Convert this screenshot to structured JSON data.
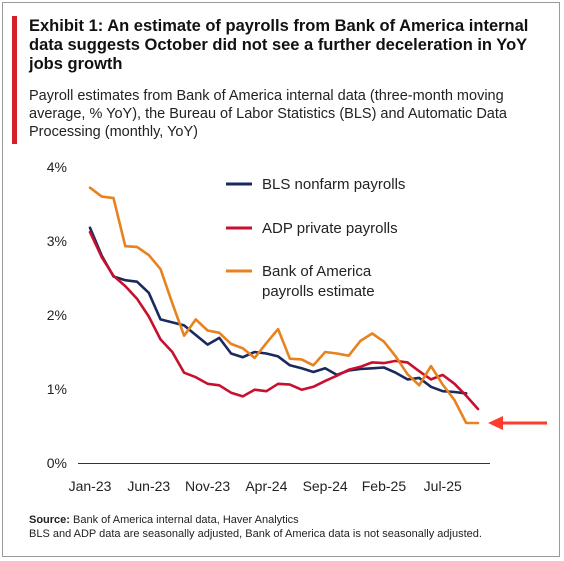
{
  "title": "Exhibit 1: An estimate of payrolls from Bank of America internal data suggests October did not see a further deceleration in YoY jobs growth",
  "subtitle": "Payroll estimates from Bank of America internal data (three-month moving average, % YoY), the Bureau of Labor Statistics (BLS) and Automatic Data Processing (monthly, YoY)",
  "source_label": "Source:",
  "source_text": "Bank of America internal data, Haver Analytics",
  "note": "BLS and ADP data are seasonally adjusted, Bank of America data is not seasonally adjusted.",
  "chart_data": {
    "type": "line",
    "x_start": "2023-01",
    "x_end": "2025-10",
    "x_ticks": [
      "Jan-23",
      "Jun-23",
      "Nov-23",
      "Apr-24",
      "Sep-24",
      "Feb-25",
      "Jul-25"
    ],
    "y_ticks": [
      "0%",
      "1%",
      "2%",
      "3%",
      "4%"
    ],
    "ylim": [
      0,
      4
    ],
    "grid": false,
    "legend_position": "top-right",
    "annotation": "red arrow pointing at the latest Bank of America estimate",
    "series": [
      {
        "name": "BLS nonfarm payrolls",
        "color": "#1a2a5e",
        "dates": [
          "2023-01",
          "2023-02",
          "2023-03",
          "2023-04",
          "2023-05",
          "2023-06",
          "2023-07",
          "2023-08",
          "2023-09",
          "2023-10",
          "2023-11",
          "2023-12",
          "2024-01",
          "2024-02",
          "2024-03",
          "2024-04",
          "2024-05",
          "2024-06",
          "2024-07",
          "2024-08",
          "2024-09",
          "2024-10",
          "2024-11",
          "2024-12",
          "2025-01",
          "2025-02",
          "2025-03",
          "2025-04",
          "2025-05",
          "2025-06",
          "2025-07",
          "2025-08",
          "2025-09"
        ],
        "values": [
          3.18,
          2.8,
          2.52,
          2.47,
          2.45,
          2.3,
          1.94,
          1.9,
          1.86,
          1.73,
          1.6,
          1.69,
          1.48,
          1.43,
          1.5,
          1.48,
          1.44,
          1.32,
          1.28,
          1.23,
          1.28,
          1.19,
          1.25,
          1.27,
          1.28,
          1.29,
          1.22,
          1.13,
          1.15,
          1.03,
          0.97,
          0.96,
          0.94
        ]
      },
      {
        "name": "ADP private payrolls",
        "color": "#c8102e",
        "dates": [
          "2023-01",
          "2023-02",
          "2023-03",
          "2023-04",
          "2023-05",
          "2023-06",
          "2023-07",
          "2023-08",
          "2023-09",
          "2023-10",
          "2023-11",
          "2023-12",
          "2024-01",
          "2024-02",
          "2024-03",
          "2024-04",
          "2024-05",
          "2024-06",
          "2024-07",
          "2024-08",
          "2024-09",
          "2024-10",
          "2024-11",
          "2024-12",
          "2025-01",
          "2025-02",
          "2025-03",
          "2025-04",
          "2025-05",
          "2025-06",
          "2025-07",
          "2025-08",
          "2025-09",
          "2025-10"
        ],
        "values": [
          3.12,
          2.78,
          2.53,
          2.39,
          2.22,
          1.98,
          1.67,
          1.5,
          1.22,
          1.16,
          1.07,
          1.05,
          0.95,
          0.9,
          0.99,
          0.97,
          1.07,
          1.06,
          0.99,
          1.03,
          1.11,
          1.18,
          1.26,
          1.3,
          1.36,
          1.35,
          1.38,
          1.36,
          1.24,
          1.13,
          1.19,
          1.07,
          0.91,
          0.73
        ]
      },
      {
        "name": "Bank of America payrolls estimate",
        "color": "#e8821e",
        "dates": [
          "2023-01",
          "2023-02",
          "2023-03",
          "2023-04",
          "2023-05",
          "2023-06",
          "2023-07",
          "2023-08",
          "2023-09",
          "2023-10",
          "2023-11",
          "2023-12",
          "2024-01",
          "2024-02",
          "2024-03",
          "2024-04",
          "2024-05",
          "2024-06",
          "2024-07",
          "2024-08",
          "2024-09",
          "2024-10",
          "2024-11",
          "2024-12",
          "2025-01",
          "2025-02",
          "2025-03",
          "2025-04",
          "2025-05",
          "2025-06",
          "2025-07",
          "2025-08",
          "2025-09",
          "2025-10"
        ],
        "values": [
          3.72,
          3.6,
          3.58,
          2.93,
          2.92,
          2.81,
          2.62,
          2.16,
          1.72,
          1.94,
          1.79,
          1.76,
          1.61,
          1.55,
          1.42,
          1.62,
          1.81,
          1.41,
          1.4,
          1.32,
          1.5,
          1.48,
          1.45,
          1.65,
          1.75,
          1.64,
          1.44,
          1.2,
          1.05,
          1.31,
          1.06,
          0.85,
          0.54,
          0.54
        ]
      }
    ]
  }
}
